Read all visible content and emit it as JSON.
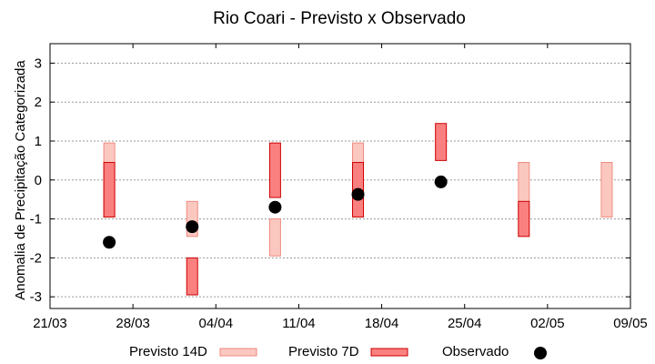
{
  "chart_data": {
    "type": "range-bar-scatter",
    "title": "Rio Coari - Previsto x Observado",
    "xlabel": "",
    "ylabel": "Anomalia de Precipitação Categorizada",
    "x_ticks": [
      "21/03",
      "28/03",
      "04/04",
      "11/04",
      "18/04",
      "25/04",
      "02/05",
      "09/05"
    ],
    "y_ticks": [
      "-3",
      "-2",
      "-1",
      "0",
      "1",
      "2",
      "3"
    ],
    "y_tick_values": [
      -3,
      -2,
      -1,
      0,
      1,
      2,
      3
    ],
    "x_range_days": [
      0,
      49
    ],
    "ylim": [
      -3.3,
      3.5
    ],
    "grid": true,
    "legend_position": "bottom",
    "series": [
      {
        "name": "Previsto 14D",
        "color_fill": "#fbc8c0",
        "color_edge": "#f08a80",
        "points": [
          {
            "date": "26/03",
            "low": -0.95,
            "high": 0.95
          },
          {
            "date": "02/04",
            "low": -1.45,
            "high": -0.55
          },
          {
            "date": "09/04",
            "low": -1.95,
            "high": -1.0
          },
          {
            "date": "16/04",
            "low": -0.95,
            "high": 0.95
          },
          {
            "date": "30/04",
            "low": -0.95,
            "high": 0.45
          },
          {
            "date": "07/05",
            "low": -0.95,
            "high": 0.45
          }
        ]
      },
      {
        "name": "Previsto 7D",
        "color_fill": "#fa8080",
        "color_edge": "#cc0000",
        "points": [
          {
            "date": "26/03",
            "low": -0.95,
            "high": 0.45
          },
          {
            "date": "02/04",
            "low": -2.95,
            "high": -2.0
          },
          {
            "date": "09/04",
            "low": -0.45,
            "high": 0.95
          },
          {
            "date": "16/04",
            "low": -0.95,
            "high": 0.45
          },
          {
            "date": "23/04",
            "low": 0.5,
            "high": 1.45
          },
          {
            "date": "30/04",
            "low": -1.45,
            "high": -0.55
          }
        ]
      },
      {
        "name": "Observado",
        "color": "#000000",
        "points": [
          {
            "date": "26/03",
            "value": -1.6
          },
          {
            "date": "02/04",
            "value": -1.2
          },
          {
            "date": "09/04",
            "value": -0.7
          },
          {
            "date": "16/04",
            "value": -0.37
          },
          {
            "date": "23/04",
            "value": -0.05
          }
        ]
      }
    ]
  }
}
